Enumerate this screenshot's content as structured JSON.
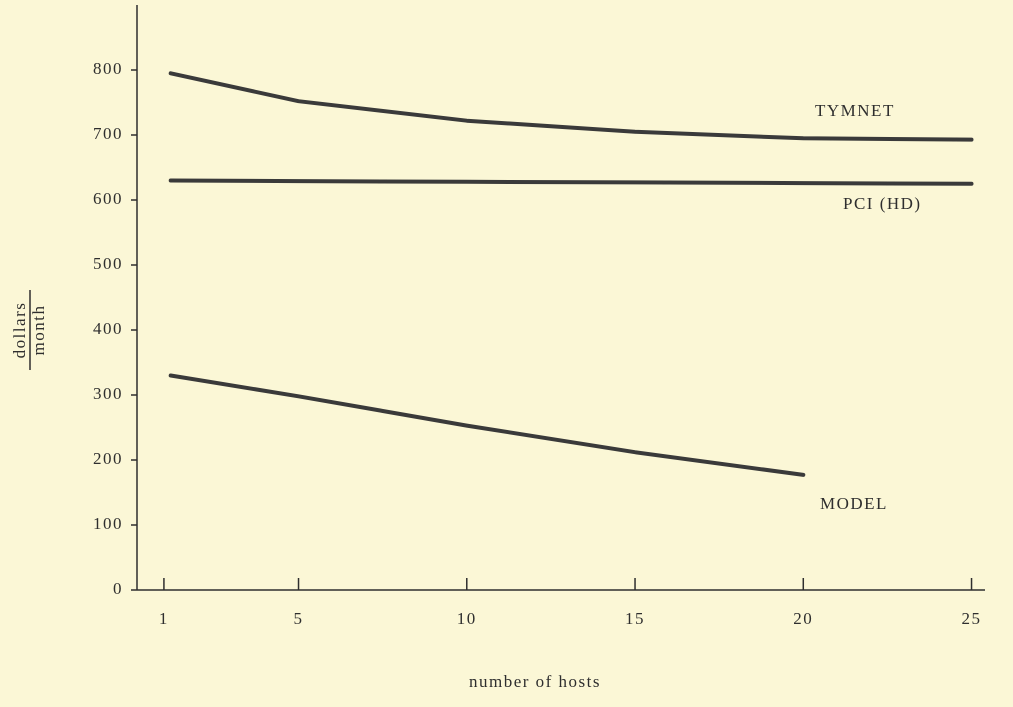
{
  "chart_data": {
    "type": "line",
    "xlabel": "number of hosts",
    "ylabel": {
      "numerator": "dollars",
      "denominator": "month"
    },
    "x": [
      1.2,
      5,
      10,
      15,
      20,
      25
    ],
    "series": [
      {
        "name": "TYMNET",
        "color": "#3a3a3a",
        "values": [
          795,
          752,
          722,
          705,
          695,
          693
        ]
      },
      {
        "name": "PCI (HD)",
        "color": "#3a3a3a",
        "values": [
          630,
          629,
          628,
          627,
          626,
          625
        ]
      },
      {
        "name": "MODEL",
        "color": "#3a3a3a",
        "values": [
          330,
          298,
          253,
          212,
          177,
          null
        ]
      }
    ],
    "xlim": [
      0.2,
      25.4
    ],
    "xticks": [
      1,
      5,
      10,
      15,
      20,
      25
    ],
    "ylim": [
      0,
      900
    ],
    "yticks": [
      0,
      100,
      200,
      300,
      400,
      500,
      600,
      700,
      800
    ],
    "grid": false
  }
}
